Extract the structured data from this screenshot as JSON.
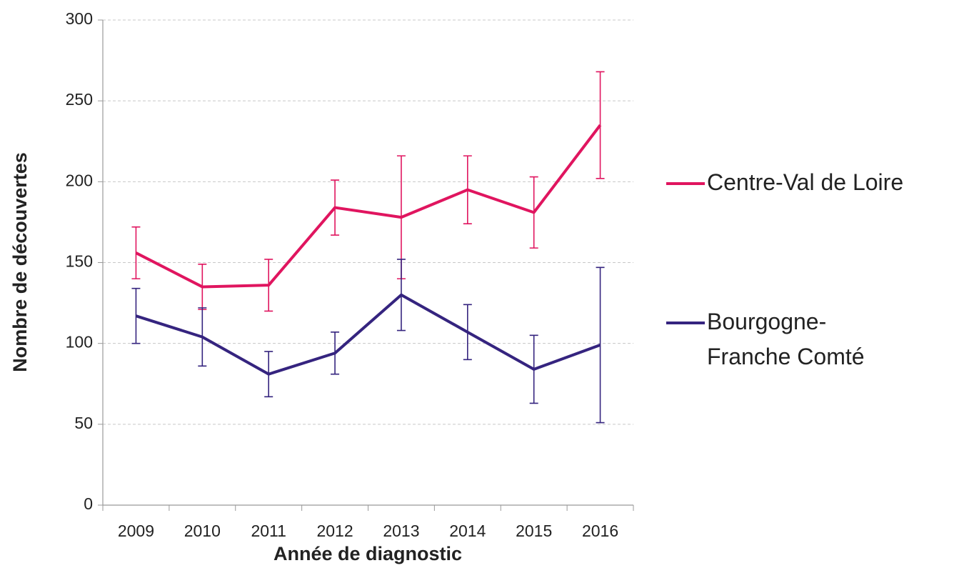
{
  "chart_data": {
    "type": "line",
    "x_label": "Année de diagnostic",
    "y_label": "Nombre de découvertes",
    "categories": [
      "2009",
      "2010",
      "2011",
      "2012",
      "2013",
      "2014",
      "2015",
      "2016"
    ],
    "series": [
      {
        "name": "Centre-Val de Loire",
        "color": "#e0155f",
        "values": [
          156,
          135,
          136,
          184,
          178,
          195,
          181,
          235
        ],
        "errors": [
          16,
          14,
          16,
          17,
          38,
          21,
          22,
          33
        ]
      },
      {
        "name": "Bourgogne-Franche Comté",
        "color": "#35247f",
        "values": [
          117,
          104,
          81,
          94,
          130,
          107,
          84,
          99
        ],
        "errors": [
          17,
          18,
          14,
          13,
          22,
          17,
          21,
          48
        ]
      }
    ],
    "ylim": [
      0,
      300
    ],
    "yticks": [
      0,
      50,
      100,
      150,
      200,
      250,
      300
    ],
    "grid": true,
    "legend": "right"
  }
}
